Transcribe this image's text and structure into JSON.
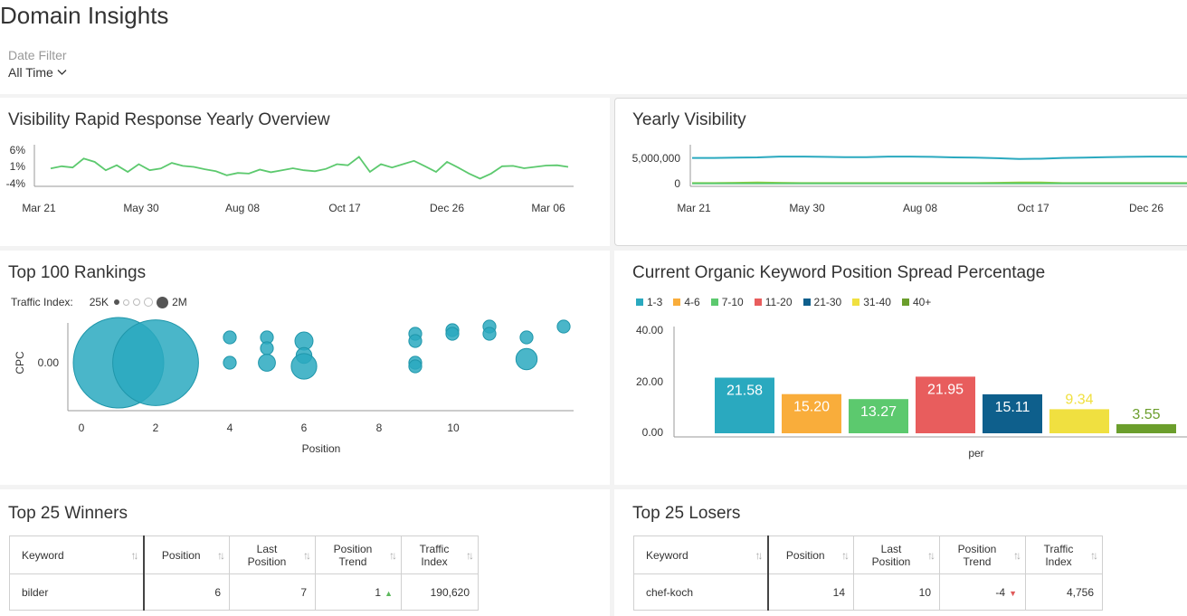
{
  "page": {
    "title": "Domain Insights",
    "date_filter": {
      "label": "Date Filter",
      "value": "All Time"
    }
  },
  "visibility_overview": {
    "title": "Visibility Rapid Response Yearly Overview",
    "y_ticks": [
      "6%",
      "1%",
      "-4%"
    ],
    "x_ticks": [
      "Mar 21",
      "May 30",
      "Aug 08",
      "Oct 17",
      "Dec 26",
      "Mar 06"
    ],
    "line_color": "#5cc96e",
    "chart_data": {
      "type": "line",
      "xlabel": "",
      "ylabel": "",
      "ylim": [
        -4,
        6
      ],
      "values": [
        0.5,
        1.2,
        0.8,
        3.5,
        2.5,
        0,
        1.5,
        -0.5,
        1.8,
        0,
        0.5,
        2.2,
        1.3,
        1,
        0.3,
        -0.3,
        -1.5,
        -0.8,
        -1,
        0.2,
        -0.6,
        0,
        0.6,
        0,
        -0.3,
        0.4,
        1.8,
        1.5,
        4,
        -0.5,
        1.8,
        0.8,
        1.8,
        2.8,
        1.2,
        -0.5,
        2.5,
        0.8,
        -1,
        -2.5,
        -1,
        1.2,
        1.3,
        0.6,
        1,
        1.4,
        1.5,
        1
      ]
    }
  },
  "yearly_visibility": {
    "title": "Yearly Visibility",
    "y_ticks": [
      "5,000,000",
      "0"
    ],
    "x_ticks": [
      "Mar 21",
      "May 30",
      "Aug 08",
      "Oct 17",
      "Dec 26"
    ],
    "chart_data": {
      "type": "line",
      "ylim": [
        0,
        5000000
      ],
      "series": [
        {
          "color": "#2aa9bf",
          "values": [
            4900000,
            4900000,
            4950000,
            5000000,
            5150000,
            5150000,
            5100000,
            5050000,
            5050000,
            5150000,
            5150000,
            5100000,
            5000000,
            4950000,
            4850000,
            4700000,
            4750000,
            4900000,
            4950000,
            5050000,
            5100000,
            5150000,
            5150000,
            5100000
          ]
        },
        {
          "color": "#9acd32",
          "values": [
            100000,
            100000,
            150000,
            200000,
            150000,
            100000,
            100000,
            100000,
            100000,
            100000,
            100000,
            100000,
            100000,
            100000,
            150000,
            200000,
            200000,
            100000,
            100000,
            100000,
            100000,
            100000,
            100000,
            100000
          ]
        },
        {
          "color": "#5cc96e",
          "values": [
            50000,
            50000,
            50000,
            50000,
            50000,
            50000,
            50000,
            50000,
            50000,
            50000,
            50000,
            50000,
            50000,
            50000,
            50000,
            50000,
            50000,
            50000,
            50000,
            50000,
            50000,
            50000,
            50000,
            50000
          ]
        }
      ]
    }
  },
  "top100": {
    "title": "Top 100 Rankings",
    "legend_label": "Traffic Index:",
    "legend_min": "25K",
    "legend_max": "2M",
    "ylabel": "CPC",
    "xlabel": "Position",
    "y_ticks": [
      "0.00"
    ],
    "x_ticks": [
      "0",
      "2",
      "4",
      "6",
      "8",
      "10"
    ],
    "bubble_color": "#2aa9bf",
    "chart_data": {
      "type": "scatter",
      "xlim": [
        -0.4,
        13.2
      ],
      "points": [
        {
          "x": 1,
          "y": 0,
          "size": 2000000
        },
        {
          "x": 2,
          "y": 0,
          "size": 1800000
        },
        {
          "x": 4,
          "y": 0.35,
          "size": 40000
        },
        {
          "x": 4,
          "y": 0,
          "size": 40000
        },
        {
          "x": 5,
          "y": 0.35,
          "size": 40000
        },
        {
          "x": 5,
          "y": 0.2,
          "size": 40000
        },
        {
          "x": 5,
          "y": 0,
          "size": 70000
        },
        {
          "x": 6,
          "y": 0.3,
          "size": 80000
        },
        {
          "x": 6,
          "y": 0.1,
          "size": 60000
        },
        {
          "x": 6,
          "y": -0.05,
          "size": 160000
        },
        {
          "x": 9,
          "y": 0.4,
          "size": 40000
        },
        {
          "x": 9,
          "y": 0.3,
          "size": 40000
        },
        {
          "x": 9,
          "y": 0,
          "size": 40000
        },
        {
          "x": 9,
          "y": -0.05,
          "size": 40000
        },
        {
          "x": 10,
          "y": 0.45,
          "size": 40000
        },
        {
          "x": 10,
          "y": 0.4,
          "size": 40000
        },
        {
          "x": 11,
          "y": 0.5,
          "size": 40000
        },
        {
          "x": 11,
          "y": 0.4,
          "size": 40000
        },
        {
          "x": 12,
          "y": 0.35,
          "size": 40000
        },
        {
          "x": 12,
          "y": 0.05,
          "size": 110000
        },
        {
          "x": 13,
          "y": 0.5,
          "size": 40000
        }
      ]
    }
  },
  "spread": {
    "title": "Current Organic Keyword Position Spread Percentage",
    "y_ticks": [
      "40.00",
      "20.00",
      "0.00"
    ],
    "xlabel": "per",
    "legend": [
      {
        "label": "1-3",
        "color": "#2aa9bf"
      },
      {
        "label": "4-6",
        "color": "#f9ad3b"
      },
      {
        "label": "7-10",
        "color": "#5cc96e"
      },
      {
        "label": "11-20",
        "color": "#e85d5d"
      },
      {
        "label": "21-30",
        "color": "#0e5f8c"
      },
      {
        "label": "31-40",
        "color": "#f0e040"
      },
      {
        "label": "40+",
        "color": "#6b9e2c"
      }
    ],
    "chart_data": {
      "type": "bar",
      "categories": [
        "per"
      ],
      "ylim": [
        0,
        40
      ],
      "series": [
        {
          "name": "1-3",
          "values": [
            21.58
          ],
          "label": "21.58"
        },
        {
          "name": "4-6",
          "values": [
            15.2
          ],
          "label": "15.20"
        },
        {
          "name": "7-10",
          "values": [
            13.27
          ],
          "label": "13.27"
        },
        {
          "name": "11-20",
          "values": [
            21.95
          ],
          "label": "21.95"
        },
        {
          "name": "21-30",
          "values": [
            15.11
          ],
          "label": "15.11"
        },
        {
          "name": "31-40",
          "values": [
            9.34
          ],
          "label": "9.34"
        },
        {
          "name": "40+",
          "values": [
            3.55
          ],
          "label": "3.55"
        }
      ]
    }
  },
  "winners": {
    "title": "Top 25 Winners",
    "columns": [
      "Keyword",
      "Position",
      "Last Position",
      "Position Trend",
      "Traffic Index"
    ],
    "rows": [
      {
        "keyword": "bilder",
        "position": "6",
        "last_position": "7",
        "trend": "1",
        "traffic": "190,620"
      }
    ]
  },
  "losers": {
    "title": "Top 25 Losers",
    "columns": [
      "Keyword",
      "Position",
      "Last Position",
      "Position Trend",
      "Traffic Index"
    ],
    "rows": [
      {
        "keyword": "chef-koch",
        "position": "14",
        "last_position": "10",
        "trend": "-4",
        "traffic": "4,756"
      }
    ]
  },
  "icons": {
    "sort": "sort-arrows-icon",
    "chevron": "chevron-down-icon",
    "trend_up": "triangle-up-icon",
    "trend_down": "triangle-down-icon"
  }
}
